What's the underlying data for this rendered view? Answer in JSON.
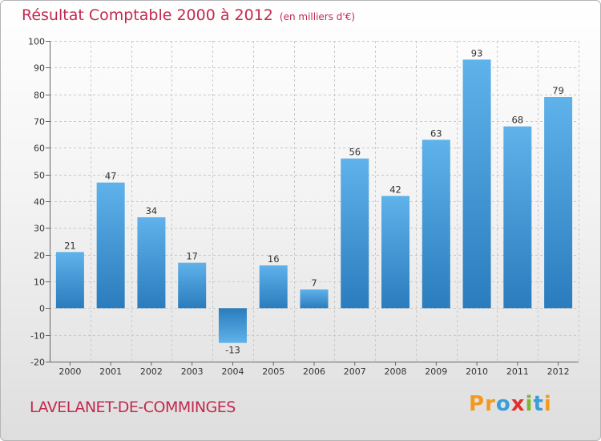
{
  "chart_data": {
    "type": "bar",
    "title": "Résultat Comptable 2000 à 2012",
    "subtitle": "(en milliers d'€)",
    "categories": [
      "2000",
      "2001",
      "2002",
      "2003",
      "2004",
      "2005",
      "2006",
      "2007",
      "2008",
      "2009",
      "2010",
      "2011",
      "2012"
    ],
    "values": [
      21,
      47,
      34,
      17,
      -13,
      16,
      7,
      56,
      42,
      63,
      93,
      68,
      79
    ],
    "ylim": [
      -20,
      100
    ],
    "yticks": [
      -20,
      -10,
      0,
      10,
      20,
      30,
      40,
      50,
      60,
      70,
      80,
      90,
      100
    ],
    "xlabel": "",
    "ylabel": "",
    "grid": true
  },
  "location": "LAVELANET-DE-COMMINGES",
  "logo": {
    "letters": [
      "P",
      "r",
      "o",
      "x",
      "i",
      "t",
      "i"
    ],
    "colors": [
      "#f39a1e",
      "#f39a1e",
      "#3a9fd8",
      "#e2302f",
      "#7cb82f",
      "#3a9fd8",
      "#f39a1e"
    ]
  },
  "colors": {
    "bar_top": "#5fb2ea",
    "bar_bottom": "#2a7cbd",
    "title": "#c4284f"
  }
}
